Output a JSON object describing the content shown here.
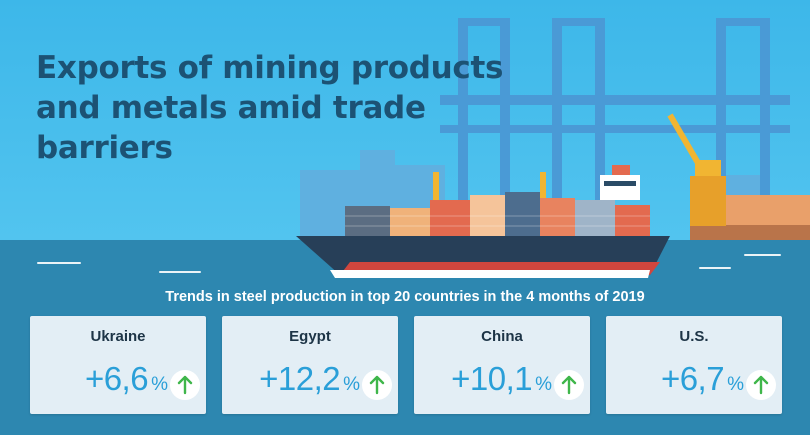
{
  "title_lines": [
    "Exports of mining products",
    "and metals amid trade",
    "barriers"
  ],
  "subtitle": "Trends in steel production in top 20 countries in the 4 months of 2019",
  "cards": [
    {
      "country": "Ukraine",
      "value": "+6,6",
      "unit": "%",
      "trend": "up"
    },
    {
      "country": "Egypt",
      "value": "+12,2",
      "unit": "%",
      "trend": "up"
    },
    {
      "country": "China",
      "value": "+10,1",
      "unit": "%",
      "trend": "up"
    },
    {
      "country": "U.S.",
      "value": "+6,7",
      "unit": "%",
      "trend": "up"
    }
  ],
  "colors": {
    "title": "#1c5274",
    "value": "#2a9fd8",
    "arrow": "#3fb64a",
    "card": "#e3eef5",
    "sky": "#46bbeb",
    "sea": "#2d87b0"
  },
  "icons": {
    "trend_up": "arrow-up-circle-icon"
  }
}
